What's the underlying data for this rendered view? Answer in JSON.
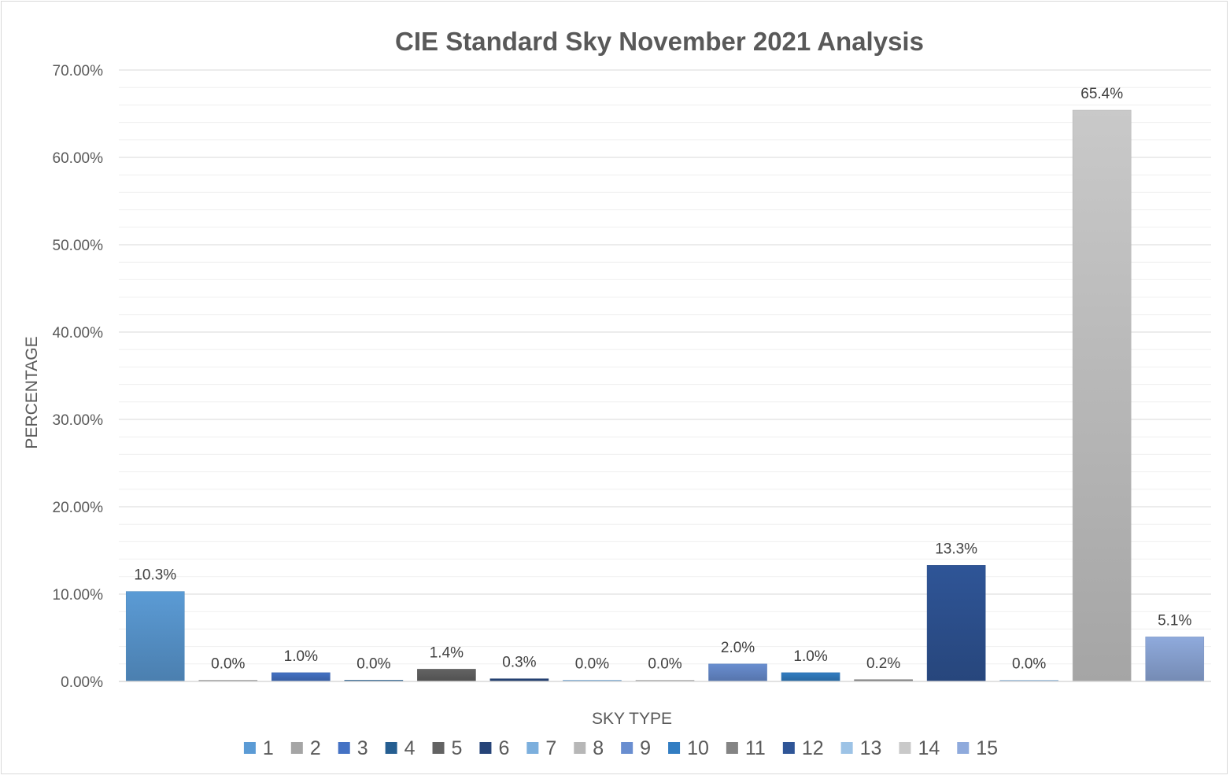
{
  "chart_data": {
    "type": "bar",
    "title": "CIE Standard Sky November 2021 Analysis",
    "xlabel": "SKY TYPE",
    "ylabel": "PERCENTAGE",
    "ylim": [
      0,
      0.7
    ],
    "yticks": [
      0,
      0.1,
      0.2,
      0.3,
      0.4,
      0.5,
      0.6,
      0.7
    ],
    "ytick_labels": [
      "0.00%",
      "10.00%",
      "20.00%",
      "30.00%",
      "40.00%",
      "50.00%",
      "60.00%",
      "70.00%"
    ],
    "grid": true,
    "legend_position": "bottom",
    "categories": [
      "1",
      "2",
      "3",
      "4",
      "5",
      "6",
      "7",
      "8",
      "9",
      "10",
      "11",
      "12",
      "13",
      "14",
      "15"
    ],
    "values": [
      0.103,
      0.0,
      0.01,
      0.0,
      0.014,
      0.003,
      0.0,
      0.0,
      0.02,
      0.01,
      0.002,
      0.133,
      0.0,
      0.654,
      0.051
    ],
    "data_labels": [
      "10.3%",
      "0.0%",
      "1.0%",
      "0.0%",
      "1.4%",
      "0.3%",
      "0.0%",
      "0.0%",
      "2.0%",
      "1.0%",
      "0.2%",
      "13.3%",
      "0.0%",
      "65.4%",
      "5.1%"
    ],
    "colors": [
      "#5b9bd5",
      "#a5a5a5",
      "#4472c4",
      "#255e91",
      "#636363",
      "#264478",
      "#7cafdd",
      "#b7b7b7",
      "#698ed0",
      "#327dc2",
      "#848484",
      "#2f5597",
      "#9dc3e6",
      "#c9c9c9",
      "#8faadc"
    ]
  }
}
